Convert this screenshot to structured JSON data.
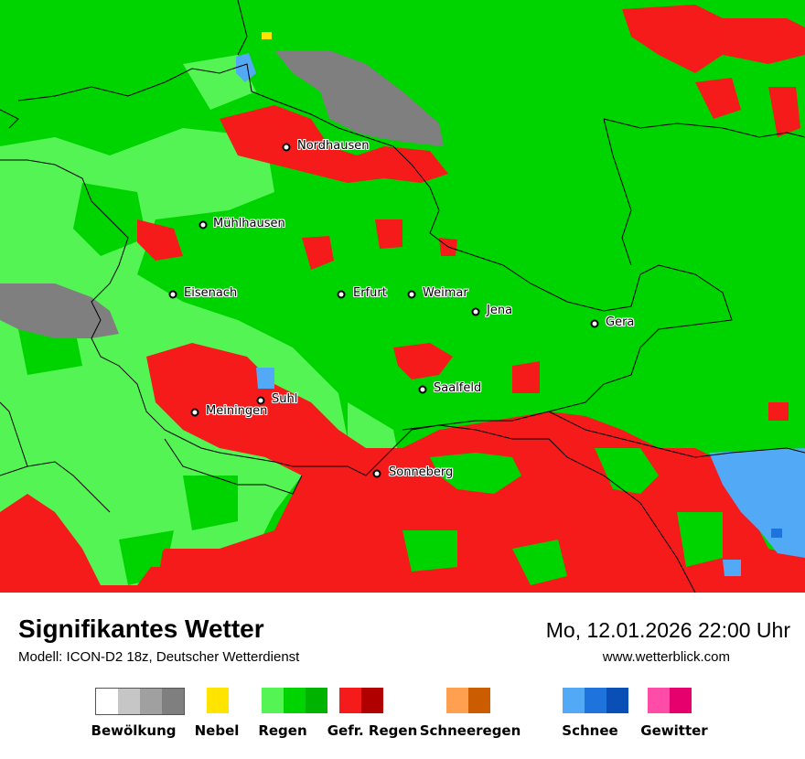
{
  "map": {
    "cities": [
      {
        "name": "Nordhausen"
      },
      {
        "name": "Mühlhausen"
      },
      {
        "name": "Eisenach"
      },
      {
        "name": "Erfurt"
      },
      {
        "name": "Weimar"
      },
      {
        "name": "Jena"
      },
      {
        "name": "Gera"
      },
      {
        "name": "Saalfeld"
      },
      {
        "name": "Suhl"
      },
      {
        "name": "Meiningen"
      },
      {
        "name": "Sonneberg"
      }
    ],
    "colors": {
      "rain_light": "#53f453",
      "rain": "#00d400",
      "freezing_rain": "#f51b1b",
      "cloud_dark": "#7f7f7f",
      "snow_light": "#52a9f6",
      "snow": "#1e73dc",
      "fog": "#ffe400"
    }
  },
  "header": {
    "title": "Signifikantes Wetter",
    "subtitle": "Modell: ICON-D2 18z, Deutscher Wetterdienst",
    "datetime": "Mo, 12.01.2026 22:00 Uhr",
    "website": "www.wetterblick.com"
  },
  "legend": {
    "items": [
      {
        "label": "Bewölkung",
        "colors": [
          "#ffffff",
          "#c6c6c6",
          "#a0a0a0",
          "#7f7f7f"
        ]
      },
      {
        "label": "Nebel",
        "colors": [
          "#ffe400"
        ]
      },
      {
        "label": "Regen",
        "colors": [
          "#53f453",
          "#00d400",
          "#00b300"
        ]
      },
      {
        "label": "Gefr. Regen",
        "colors": [
          "#f51b1b",
          "#b10000"
        ]
      },
      {
        "label": "Schneeregen",
        "colors": [
          "#ffa050",
          "#cc5c00"
        ]
      },
      {
        "label": "Schnee",
        "colors": [
          "#52a9f6",
          "#1e73dc",
          "#0a4fb5"
        ]
      },
      {
        "label": "Gewitter",
        "colors": [
          "#ff4ca8",
          "#e6006e"
        ]
      }
    ]
  }
}
